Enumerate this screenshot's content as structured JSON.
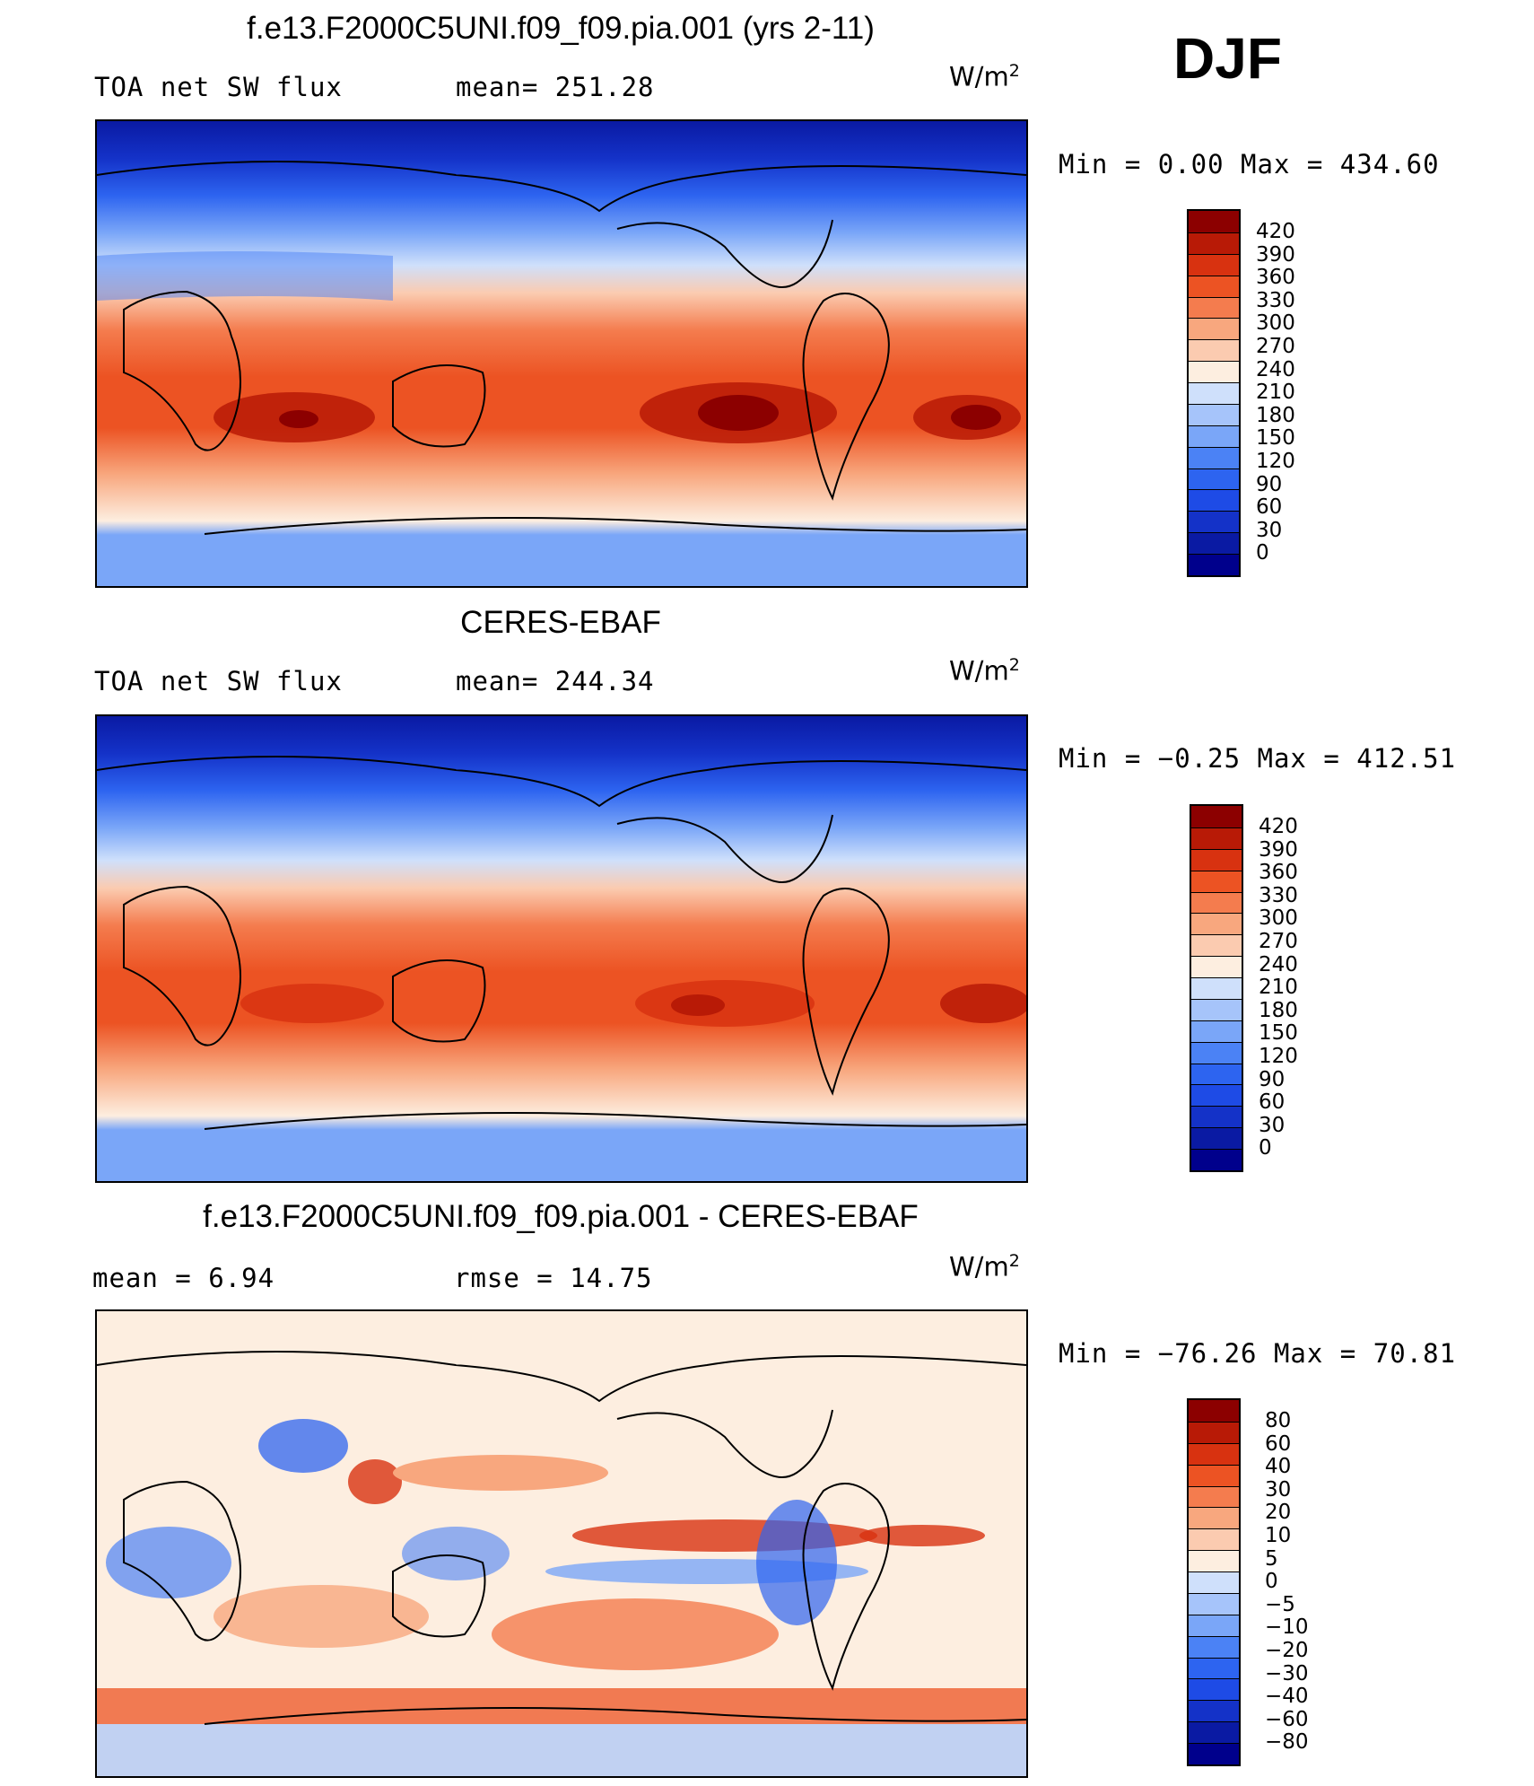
{
  "season": "DJF",
  "colors": {
    "abs": [
      "#00008c",
      "#0a1aa3",
      "#1432c8",
      "#1e4be6",
      "#2d64f0",
      "#4b82f5",
      "#7aa6f8",
      "#a6c4fa",
      "#cfe0fb",
      "#fdeee0",
      "#fbcbb0",
      "#f8a77e",
      "#f47c4e",
      "#ec5323",
      "#d83210",
      "#b81a06",
      "#8c0000"
    ],
    "diff": [
      "#00008c",
      "#0a1aa3",
      "#1432c8",
      "#1e4be6",
      "#2d64f0",
      "#4b82f5",
      "#7aa6f8",
      "#a6c4fa",
      "#cfe0fb",
      "#fdeee0",
      "#fbcbb0",
      "#f8a77e",
      "#f47c4e",
      "#ec5323",
      "#d83210",
      "#b81a06",
      "#8c0000"
    ]
  },
  "panels": [
    {
      "title": "f.e13.F2000C5UNI.f09_f09.pia.001 (yrs 2-11)",
      "left_label": "TOA net SW flux",
      "center_label": "mean= 251.28",
      "unit": "W/m",
      "unit_sup": "2",
      "minmax": "Min =    0.00 Max = 434.60",
      "levels": [
        "420",
        "390",
        "360",
        "330",
        "300",
        "270",
        "240",
        "210",
        "180",
        "150",
        "120",
        "90",
        "60",
        "30",
        "0"
      ]
    },
    {
      "title": "CERES-EBAF",
      "left_label": "TOA net SW flux",
      "center_label": "mean= 244.34",
      "unit": "W/m",
      "unit_sup": "2",
      "minmax": "Min =  −0.25 Max = 412.51",
      "levels": [
        "420",
        "390",
        "360",
        "330",
        "300",
        "270",
        "240",
        "210",
        "180",
        "150",
        "120",
        "90",
        "60",
        "30",
        "0"
      ]
    },
    {
      "title": "f.e13.F2000C5UNI.f09_f09.pia.001 - CERES-EBAF",
      "left_label": "mean =    6.94",
      "center_label": "rmse =   14.75",
      "unit": "W/m",
      "unit_sup": "2",
      "minmax": "Min = −76.26 Max =  70.81",
      "levels": [
        "80",
        "60",
        "40",
        "30",
        "20",
        "10",
        "5",
        "0",
        "−5",
        "−10",
        "−20",
        "−30",
        "−40",
        "−60",
        "−80"
      ]
    }
  ]
}
